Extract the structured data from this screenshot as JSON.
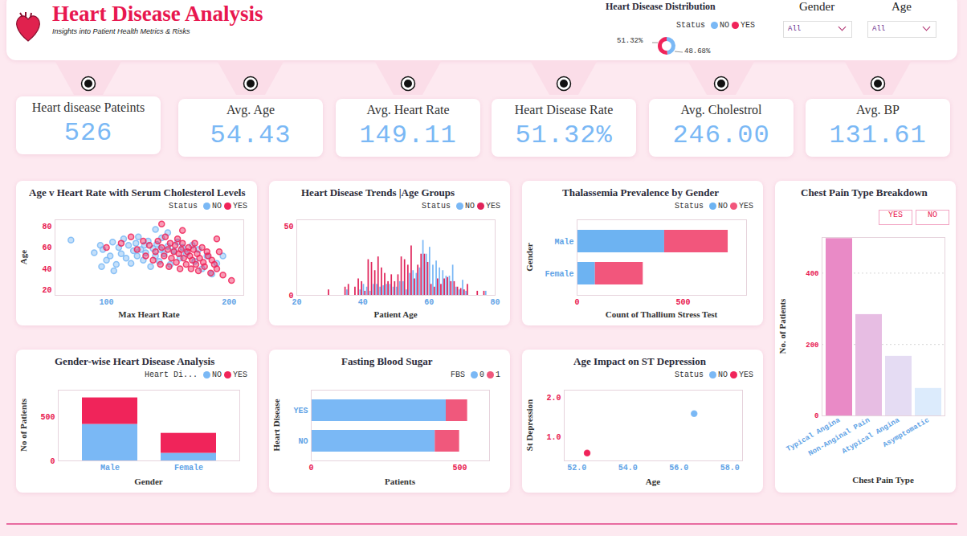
{
  "header": {
    "title": "Heart Disease Analysis",
    "subtitle": "Insights into Patient Health Metrics & Risks"
  },
  "filters": [
    {
      "label": "Gender",
      "value": "All"
    },
    {
      "label": "Age",
      "value": "All"
    }
  ],
  "kpis": [
    {
      "label": "Heart disease Pateints",
      "value": "526"
    },
    {
      "label": "Avg. Age",
      "value": "54.43"
    },
    {
      "label": "Avg. Heart Rate",
      "value": "149.11"
    },
    {
      "label": "Heart Disease Rate",
      "value": "51.32%"
    },
    {
      "label": "Avg. Cholestrol",
      "value": "246.00"
    },
    {
      "label": "Avg. BP",
      "value": "131.61"
    }
  ],
  "chart_data": [
    {
      "type": "pie",
      "title": "Heart Disease Distribution",
      "legend_title": "Status",
      "categories": [
        "NO",
        "YES"
      ],
      "values": [
        48.68,
        51.32
      ],
      "value_labels": [
        "48.68%",
        "51.32%"
      ],
      "colors": [
        "#7ab8f5",
        "#f0245a"
      ]
    },
    {
      "type": "scatter",
      "title": "Age v Heart Rate with Serum Cholesterol Levels",
      "legend_title": "Status",
      "x_label": "Max Heart Rate",
      "y_label": "Age",
      "xlim": [
        58,
        212
      ],
      "xticks": [
        100,
        200
      ],
      "ylim": [
        15,
        86
      ],
      "yticks": [
        20,
        40,
        60,
        80
      ],
      "series": [
        {
          "name": "NO",
          "color": "#7ab8f5",
          "x": [
            71,
            90,
            95,
            97,
            100,
            103,
            105,
            108,
            110,
            112,
            114,
            116,
            118,
            120,
            122,
            124,
            125,
            126,
            128,
            130,
            131,
            132,
            134,
            136,
            138,
            140,
            141,
            143,
            144,
            145,
            147,
            150,
            152,
            155,
            158,
            160,
            162,
            165,
            170,
            172,
            175,
            178,
            182,
            186,
            190,
            195,
            96,
            106,
            150,
            140
          ],
          "y": [
            67,
            55,
            62,
            58,
            48,
            52,
            65,
            44,
            60,
            54,
            68,
            50,
            62,
            45,
            57,
            64,
            52,
            70,
            58,
            48,
            62,
            55,
            66,
            42,
            59,
            52,
            63,
            47,
            58,
            69,
            54,
            61,
            44,
            57,
            65,
            50,
            60,
            54,
            62,
            47,
            58,
            40,
            52,
            35,
            45,
            52,
            42,
            38,
            74,
            77
          ]
        },
        {
          "name": "YES",
          "color": "#f0245a",
          "x": [
            100,
            112,
            120,
            125,
            130,
            132,
            135,
            138,
            140,
            142,
            144,
            145,
            147,
            148,
            150,
            151,
            152,
            153,
            155,
            156,
            157,
            158,
            159,
            160,
            161,
            162,
            163,
            165,
            166,
            167,
            168,
            169,
            170,
            171,
            172,
            173,
            174,
            175,
            176,
            178,
            179,
            180,
            182,
            183,
            185,
            186,
            188,
            190,
            192,
            195,
            202,
            162,
            145,
            190
          ],
          "y": [
            60,
            64,
            70,
            58,
            66,
            52,
            62,
            48,
            56,
            66,
            44,
            60,
            52,
            70,
            58,
            42,
            64,
            50,
            56,
            62,
            46,
            68,
            54,
            40,
            58,
            64,
            50,
            44,
            56,
            60,
            52,
            40,
            48,
            58,
            64,
            44,
            54,
            38,
            50,
            60,
            46,
            42,
            56,
            52,
            36,
            48,
            44,
            40,
            56,
            34,
            29,
            76,
            82,
            68
          ]
        }
      ]
    },
    {
      "type": "bar",
      "title": "Heart Disease Trends |Age Groups",
      "legend_title": "Status",
      "x_label": "Patient Age",
      "x": [
        29,
        34,
        35,
        37,
        38,
        39,
        40,
        41,
        42,
        43,
        44,
        45,
        46,
        47,
        48,
        49,
        50,
        51,
        52,
        53,
        54,
        55,
        56,
        57,
        58,
        59,
        60,
        61,
        62,
        63,
        64,
        65,
        66,
        67,
        68,
        69,
        70,
        71,
        74,
        76,
        77
      ],
      "xlim": [
        20,
        80
      ],
      "xticks": [
        20,
        40,
        60,
        80
      ],
      "ylim": [
        0,
        55
      ],
      "yticks": [
        0,
        50
      ],
      "series": [
        {
          "name": "NO",
          "color": "#7ab8f5",
          "values": [
            0,
            0,
            4,
            0,
            0,
            4,
            8,
            6,
            3,
            8,
            8,
            6,
            7,
            8,
            8,
            6,
            6,
            10,
            10,
            4,
            16,
            18,
            16,
            20,
            40,
            30,
            35,
            22,
            25,
            20,
            18,
            14,
            14,
            22,
            6,
            4,
            11,
            3,
            0,
            0,
            3
          ]
        },
        {
          "name": "YES",
          "color": "#e0245a",
          "values": [
            4,
            6,
            8,
            6,
            12,
            10,
            3,
            26,
            24,
            18,
            28,
            20,
            16,
            10,
            15,
            10,
            15,
            28,
            26,
            22,
            36,
            12,
            22,
            30,
            30,
            24,
            8,
            6,
            12,
            8,
            12,
            13,
            10,
            10,
            6,
            5,
            4,
            8,
            3,
            3,
            0
          ]
        }
      ]
    },
    {
      "type": "bar",
      "title": "Thalassemia Prevalence by Gender",
      "legend_title": "Status",
      "x_label": "Count of Thallium Stress Test",
      "y_label": "Gender",
      "orientation": "horizontal",
      "stacked": true,
      "categories": [
        "Male",
        "Female"
      ],
      "xlim": [
        0,
        800
      ],
      "xticks": [
        0,
        500
      ],
      "series": [
        {
          "name": "NO",
          "color": "#6db3f2",
          "values": [
            413,
            86
          ]
        },
        {
          "name": "YES",
          "color": "#f2567c",
          "values": [
            300,
            226
          ]
        }
      ]
    },
    {
      "type": "bar",
      "title": "Chest Pain Type Breakdown",
      "buttons": [
        "YES",
        "NO"
      ],
      "x_label": "Chest Pain Type",
      "y_label": "No. of Patients",
      "categories": [
        "Typical Angina",
        "Non-Anginal Pain",
        "Atypical Angina",
        "Asymptomatic"
      ],
      "values": [
        497,
        284,
        167,
        77
      ],
      "colors": [
        "#e98ac6",
        "#e7bde3",
        "#e5dcf3",
        "#dcebfc"
      ],
      "ylim": [
        0,
        500
      ],
      "yticks": [
        0,
        200,
        400
      ],
      "grid": true
    },
    {
      "type": "bar",
      "title": "Gender-wise Heart Disease Analysis",
      "legend_title": "Heart Di...",
      "x_label": "Gender",
      "y_label": "No of Patients",
      "stacked": true,
      "categories": [
        "Male",
        "Female"
      ],
      "ylim": [
        0,
        800
      ],
      "yticks": [
        0,
        500
      ],
      "series": [
        {
          "name": "NO",
          "color": "#7ab8f5",
          "values": [
            413,
            86
          ]
        },
        {
          "name": "YES",
          "color": "#f0245a",
          "values": [
            300,
            226
          ]
        }
      ]
    },
    {
      "type": "bar",
      "title": "Fasting Blood Sugar",
      "legend_title": "FBS",
      "x_label": "Patients",
      "y_label": "Heart Disease",
      "orientation": "horizontal",
      "stacked": true,
      "categories": [
        "YES",
        "NO"
      ],
      "xlim": [
        0,
        600
      ],
      "xticks": [
        0,
        500
      ],
      "series": [
        {
          "name": "0",
          "color": "#7ab8f5",
          "values": [
            454,
            417
          ]
        },
        {
          "name": "1",
          "color": "#f0587c",
          "values": [
            72,
            82
          ]
        }
      ]
    },
    {
      "type": "scatter",
      "title": "Age Impact on ST Depression",
      "legend_title": "Status",
      "x_label": "Age",
      "y_label": "St Depression",
      "xlim": [
        51.5,
        58.5
      ],
      "xticks": [
        52,
        54,
        56,
        58
      ],
      "ylim": [
        0.4,
        2.2
      ],
      "yticks": [
        1,
        2
      ],
      "series": [
        {
          "name": "NO",
          "color": "#7ab8f5",
          "x": [
            56.6
          ],
          "y": [
            1.6
          ]
        },
        {
          "name": "YES",
          "color": "#f0245a",
          "x": [
            52.4
          ],
          "y": [
            0.6
          ]
        }
      ]
    }
  ]
}
